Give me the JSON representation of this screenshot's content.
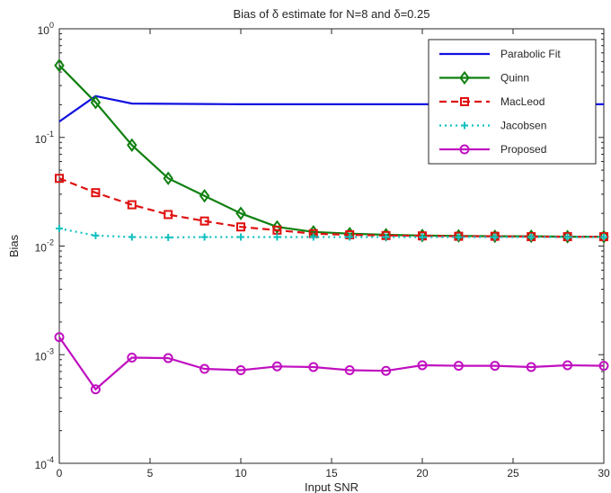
{
  "chart_data": {
    "type": "line",
    "title": "Bias of δ estimate for N=8 and  δ=0.25",
    "xlabel": "Input SNR",
    "ylabel": "Bias",
    "xlim": [
      0,
      30
    ],
    "ylim": [
      0.0001,
      1
    ],
    "yscale": "log",
    "x_ticks": [
      "0",
      "5",
      "10",
      "15",
      "20",
      "25",
      "30"
    ],
    "x_tick_values": [
      0,
      5,
      10,
      15,
      20,
      25,
      30
    ],
    "y_tick_base": "10",
    "y_tick_exponents": [
      "-4",
      "-3",
      "-2",
      "-1",
      "0"
    ],
    "grid": false,
    "legend_position": "top-right",
    "x": [
      0,
      2,
      4,
      6,
      8,
      10,
      12,
      14,
      16,
      18,
      20,
      22,
      24,
      26,
      28,
      30
    ],
    "series": [
      {
        "name": "Parabolic Fit",
        "color": "#1010e0",
        "dash": "solid",
        "marker": "none",
        "values": [
          0.14,
          0.24,
          0.205,
          0.204,
          0.203,
          0.202,
          0.202,
          0.202,
          0.202,
          0.202,
          0.202,
          0.202,
          0.202,
          0.202,
          0.202,
          0.202
        ]
      },
      {
        "name": "Quinn",
        "color": "#108010",
        "dash": "solid",
        "marker": "diamond",
        "values": [
          0.46,
          0.21,
          0.085,
          0.042,
          0.029,
          0.02,
          0.015,
          0.0135,
          0.013,
          0.0127,
          0.0125,
          0.0124,
          0.0123,
          0.0123,
          0.0122,
          0.0122
        ]
      },
      {
        "name": "MacLeod",
        "color": "#e01010",
        "dash": "dashed",
        "marker": "square",
        "values": [
          0.042,
          0.031,
          0.024,
          0.0195,
          0.017,
          0.015,
          0.014,
          0.013,
          0.0127,
          0.0125,
          0.0124,
          0.0123,
          0.0123,
          0.0122,
          0.0122,
          0.0122
        ]
      },
      {
        "name": "Jacobsen",
        "color": "#10c0c0",
        "dash": "dotted",
        "marker": "plus",
        "values": [
          0.0145,
          0.0125,
          0.0121,
          0.012,
          0.0121,
          0.0121,
          0.0121,
          0.0121,
          0.0121,
          0.0121,
          0.0121,
          0.0121,
          0.0121,
          0.0121,
          0.0121,
          0.0121
        ]
      },
      {
        "name": "Proposed",
        "color": "#c010c0",
        "dash": "solid",
        "marker": "circle",
        "values": [
          0.00145,
          0.00048,
          0.00094,
          0.00093,
          0.00074,
          0.00072,
          0.00078,
          0.00077,
          0.00072,
          0.00071,
          0.0008,
          0.00079,
          0.00079,
          0.00077,
          0.0008,
          0.00079
        ]
      }
    ]
  }
}
